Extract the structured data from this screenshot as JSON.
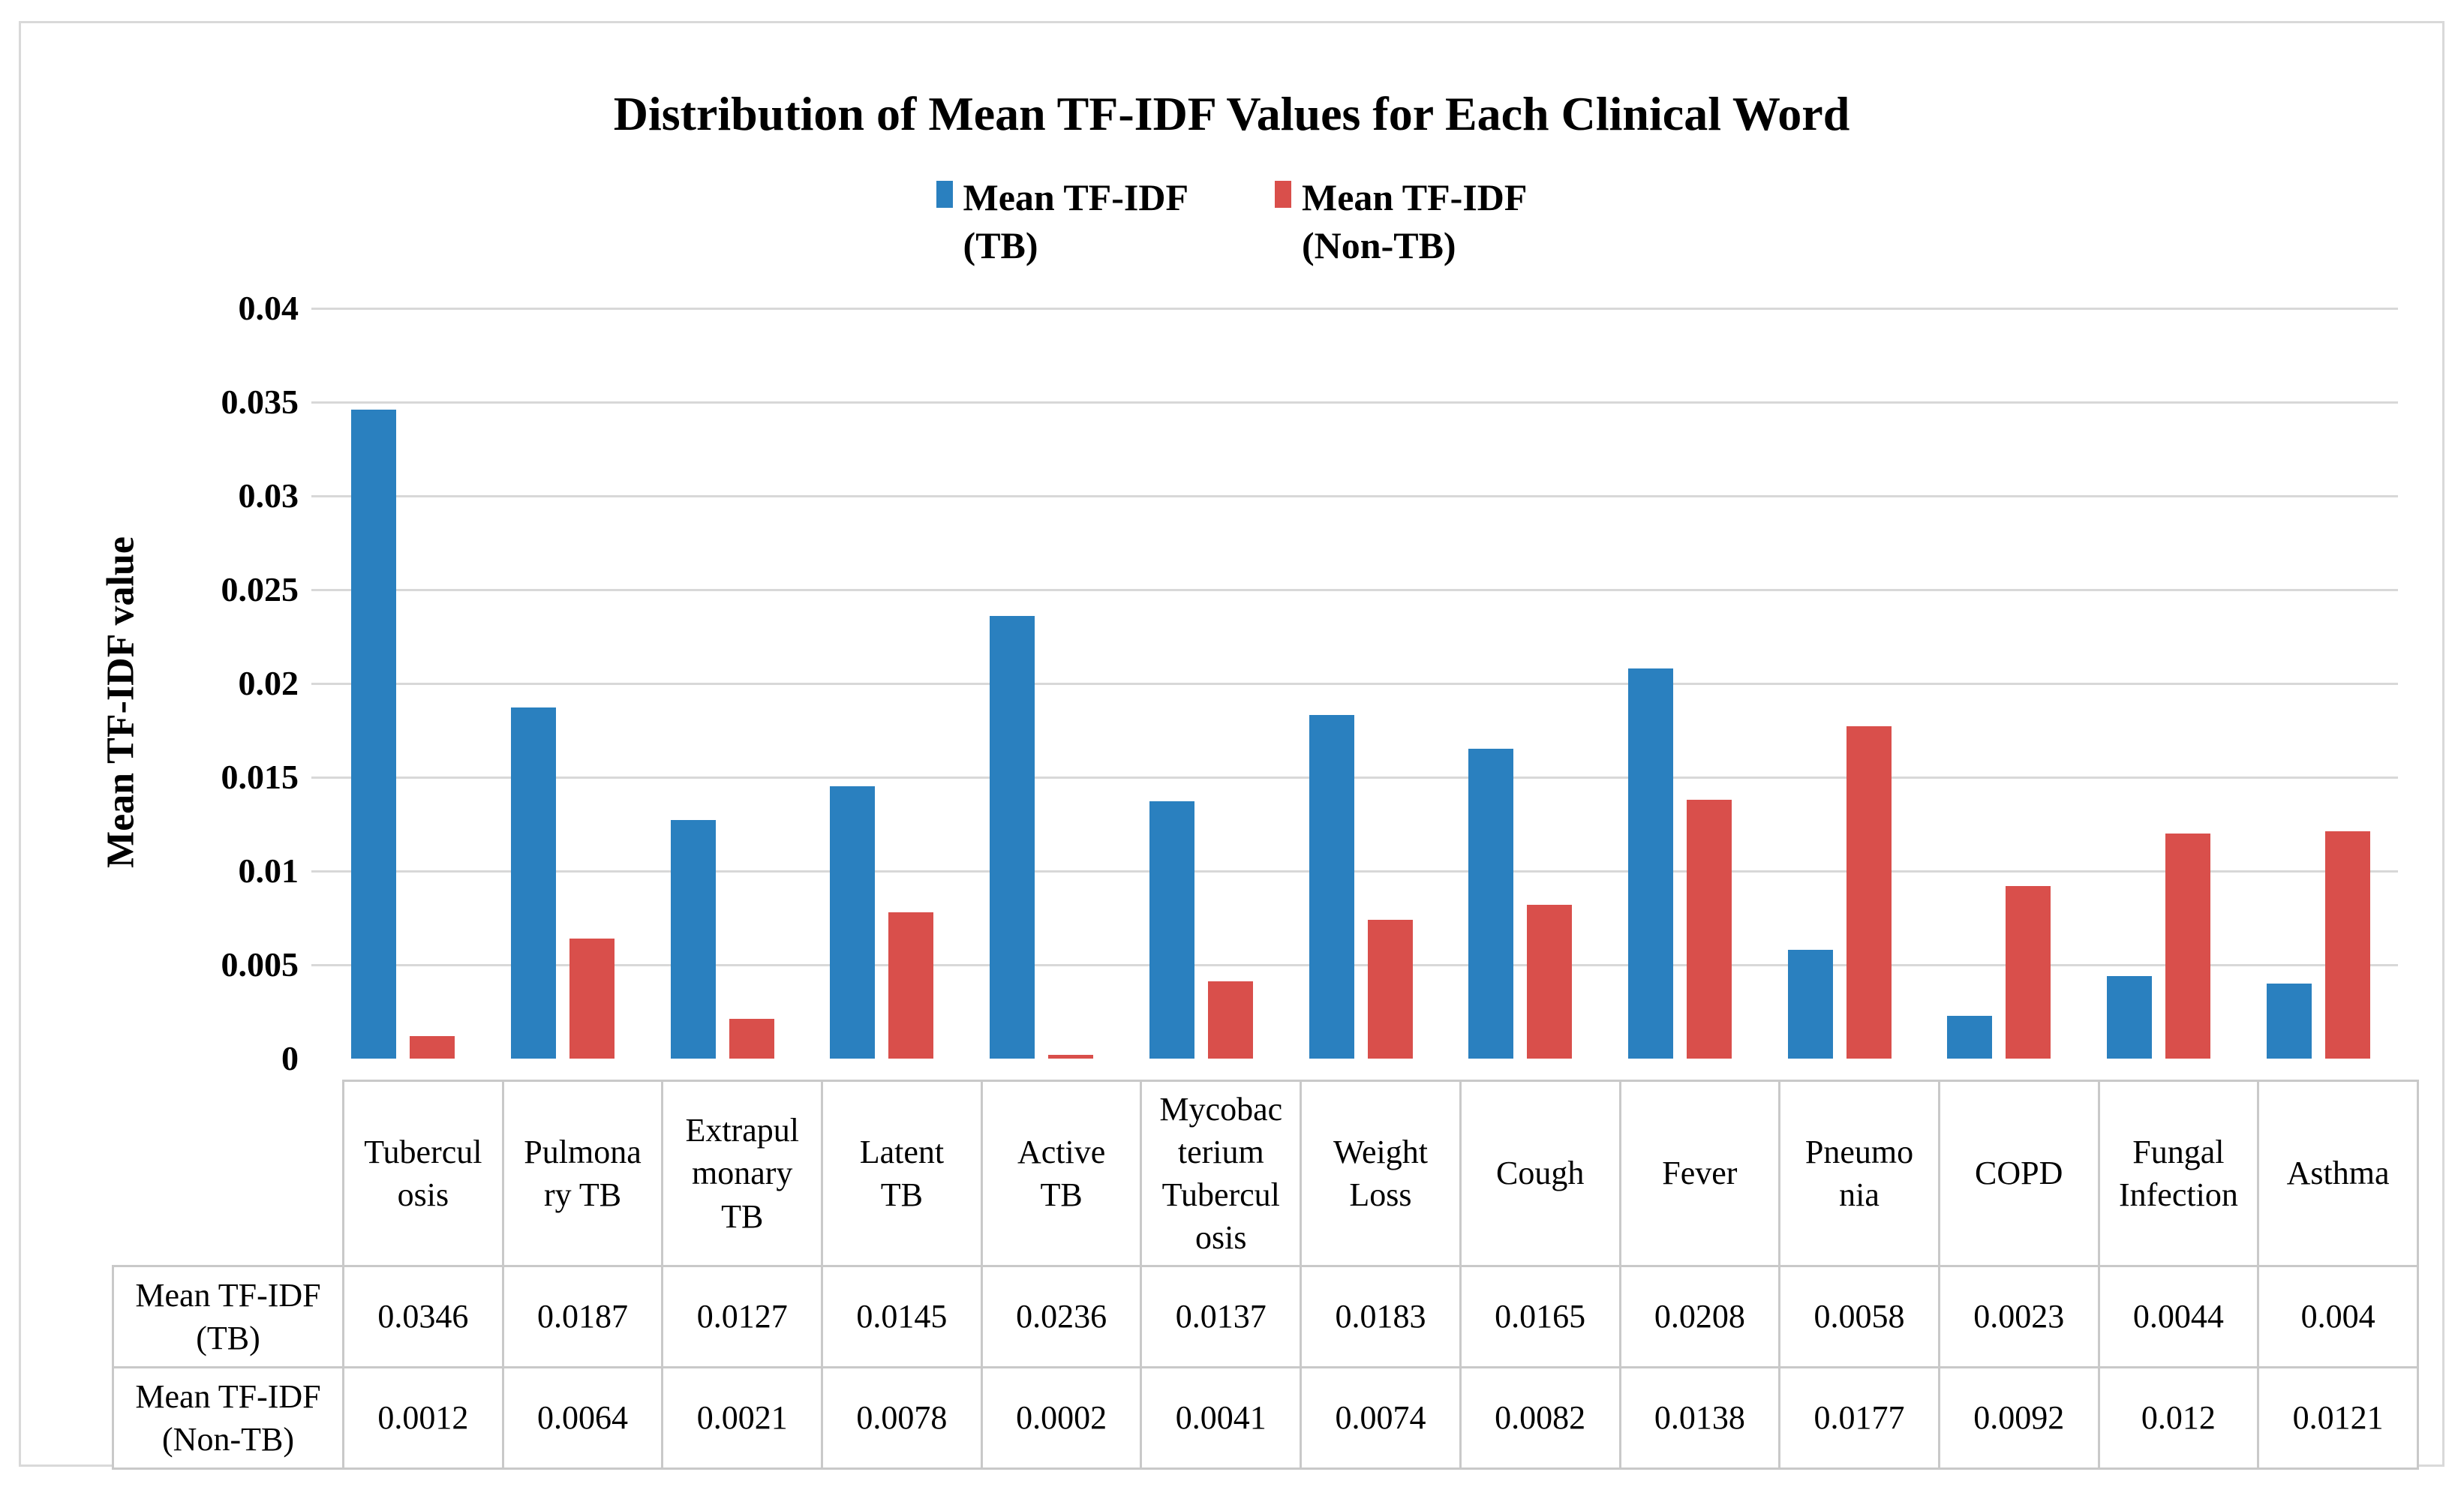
{
  "chart_data": {
    "type": "bar",
    "title": "Distribution of Mean TF-IDF Values for Each Clinical Word",
    "xlabel": "",
    "ylabel": "Mean TF-IDF value",
    "ylim": [
      0,
      0.04
    ],
    "y_tick_step": 0.005,
    "y_tick_labels_top_to_bottom": [
      "0.04",
      "0.035",
      "0.03",
      "0.025",
      "0.02",
      "0.015",
      "0.01",
      "0.005",
      "0"
    ],
    "grid": true,
    "legend_position": "top-center",
    "categories": [
      "Tuberculosis",
      "Pulmonary TB",
      "Extrapulmonary TB",
      "Latent TB",
      "Active TB",
      "Mycobacterium Tuberculosis",
      "Weight Loss",
      "Cough",
      "Fever",
      "Pneumonia",
      "COPD",
      "Fungal Infection",
      "Asthma"
    ],
    "category_display_lines": [
      [
        "Tubercul",
        "osis"
      ],
      [
        "Pulmona",
        "ry TB"
      ],
      [
        "Extrapul",
        "monary",
        "TB"
      ],
      [
        "Latent",
        "TB"
      ],
      [
        "Active",
        "TB"
      ],
      [
        "Mycobac",
        "terium",
        "Tubercul",
        "osis"
      ],
      [
        "Weight",
        "Loss"
      ],
      [
        "Cough"
      ],
      [
        "Fever"
      ],
      [
        "Pneumo",
        "nia"
      ],
      [
        "COPD"
      ],
      [
        "Fungal",
        "Infection"
      ],
      [
        "Asthma"
      ]
    ],
    "series": [
      {
        "name": "Mean TF-IDF (TB)",
        "name_lines": [
          "Mean TF-IDF",
          "(TB)"
        ],
        "color": "#2a80bf",
        "values": [
          0.0346,
          0.0187,
          0.0127,
          0.0145,
          0.0236,
          0.0137,
          0.0183,
          0.0165,
          0.0208,
          0.0058,
          0.0023,
          0.0044,
          0.004
        ],
        "display_values": [
          "0.0346",
          "0.0187",
          "0.0127",
          "0.0145",
          "0.0236",
          "0.0137",
          "0.0183",
          "0.0165",
          "0.0208",
          "0.0058",
          "0.0023",
          "0.0044",
          "0.004"
        ]
      },
      {
        "name": "Mean TF-IDF (Non-TB)",
        "name_lines": [
          "Mean TF-IDF",
          "(Non-TB)"
        ],
        "color": "#d94f4b",
        "values": [
          0.0012,
          0.0064,
          0.0021,
          0.0078,
          0.0002,
          0.0041,
          0.0074,
          0.0082,
          0.0138,
          0.0177,
          0.0092,
          0.012,
          0.0121
        ],
        "display_values": [
          "0.0012",
          "0.0064",
          "0.0021",
          "0.0078",
          "0.0002",
          "0.0041",
          "0.0074",
          "0.0082",
          "0.0138",
          "0.0177",
          "0.0092",
          "0.012",
          "0.0121"
        ]
      }
    ],
    "colors": {
      "tb_series": "#2a80bf",
      "non_tb_series": "#d94f4b",
      "gridline": "#d8d8d8",
      "table_border": "#c9c9c9",
      "figure_border": "#d9d9d9"
    }
  }
}
